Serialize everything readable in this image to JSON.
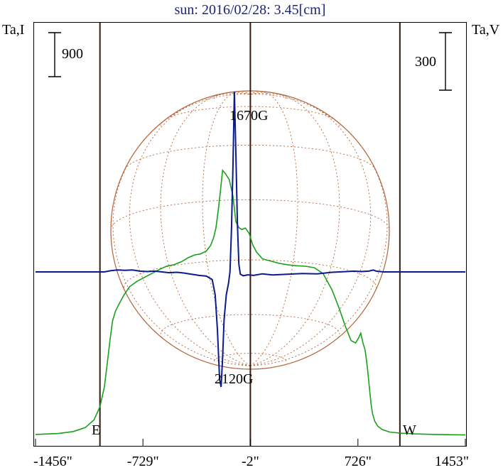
{
  "chart_data": {
    "type": "line",
    "title": "sun: 2016/02/28: 3.45[cm]",
    "left_axis_label": "Ta,I",
    "right_axis_label": "Ta,V",
    "left_scale_label": "900",
    "right_scale_label": "300",
    "x_ticks": [
      "-1456\"",
      "-729\"",
      "-2\"",
      "726\"",
      "1453\""
    ],
    "x_tick_values": [
      -1456,
      -729,
      -2,
      726,
      1453
    ],
    "xlim": [
      -1456,
      1453
    ],
    "limb_labels": [
      "E",
      "W"
    ],
    "annotations": [
      "1670G",
      "2120G"
    ],
    "grid": false,
    "colors": {
      "intensity": "#1aa01a",
      "polarization": "#0b1a8c",
      "solar_disk": "#b5643a",
      "vertical_lines": "#3a1a14",
      "title": "#1a237e"
    },
    "series": [
      {
        "name": "Ta,I",
        "x": [
          -1456,
          -1300,
          -1200,
          -1120,
          -1060,
          -1020,
          -990,
          -970,
          -950,
          -935,
          -915,
          -890,
          -860,
          -820,
          -770,
          -720,
          -670,
          -620,
          -570,
          -520,
          -470,
          -420,
          -380,
          -340,
          -300,
          -270,
          -250,
          -235,
          -220,
          -205,
          -190,
          -170,
          -145,
          -120,
          -100,
          -80,
          -60,
          -35,
          -10,
          15,
          40,
          80,
          130,
          190,
          250,
          310,
          370,
          430,
          490,
          550,
          600,
          640,
          680,
          710,
          730,
          745,
          760,
          775,
          790,
          805,
          815,
          825,
          840,
          860,
          890,
          940,
          1020,
          1120,
          1250,
          1453
        ],
        "y": [
          30,
          50,
          90,
          170,
          330,
          600,
          1000,
          1500,
          2000,
          2350,
          2550,
          2700,
          2870,
          3050,
          3160,
          3240,
          3320,
          3400,
          3470,
          3500,
          3560,
          3650,
          3700,
          3720,
          3780,
          3900,
          4060,
          4250,
          4600,
          5000,
          5430,
          5360,
          5240,
          4900,
          4380,
          4260,
          4220,
          4250,
          4140,
          3900,
          3760,
          3620,
          3580,
          3530,
          3500,
          3480,
          3470,
          3440,
          3320,
          2990,
          2600,
          2250,
          1950,
          1900,
          2000,
          2100,
          1900,
          1750,
          1400,
          950,
          650,
          450,
          300,
          200,
          130,
          80,
          55,
          40,
          30,
          20
        ],
        "unit_note": "Ta,I"
      },
      {
        "name": "Ta,V",
        "x": [
          -1456,
          -1200,
          -1060,
          -990,
          -950,
          -900,
          -850,
          -800,
          -750,
          -700,
          -650,
          -600,
          -550,
          -500,
          -450,
          -400,
          -350,
          -300,
          -260,
          -240,
          -225,
          -210,
          -200,
          -190,
          -180,
          -165,
          -150,
          -140,
          -130,
          -120,
          -110,
          -100,
          -90,
          -80,
          -70,
          -50,
          -20,
          20,
          80,
          150,
          250,
          350,
          450,
          550,
          650,
          700,
          750,
          800,
          830,
          850,
          900,
          1000,
          1200,
          1453
        ],
        "y": [
          0,
          0,
          0,
          0,
          6,
          10,
          8,
          10,
          4,
          2,
          4,
          0,
          -4,
          -2,
          -6,
          -12,
          -18,
          -22,
          -40,
          -120,
          -300,
          -560,
          -600,
          -450,
          -250,
          -120,
          -60,
          0,
          220,
          550,
          940,
          620,
          260,
          40,
          -12,
          -20,
          -15,
          -18,
          -10,
          -16,
          -12,
          -8,
          -10,
          -2,
          2,
          4,
          2,
          4,
          10,
          4,
          0,
          0,
          0,
          0
        ],
        "unit_note": "Ta,V"
      }
    ]
  }
}
